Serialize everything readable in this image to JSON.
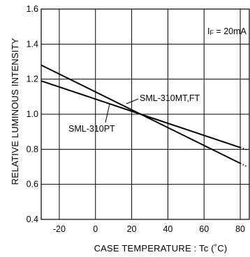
{
  "chart_data": {
    "type": "line",
    "title": "",
    "xlabel": "CASE TEMPERATURE : Tc (˚C)",
    "ylabel": "RELATIVE LUMINOUS INTENSITY",
    "xlim": [
      -30,
      85
    ],
    "ylim": [
      0.4,
      1.6
    ],
    "xticks": [
      -20,
      0,
      20,
      40,
      60,
      80
    ],
    "yticks": [
      0.4,
      0.6,
      0.8,
      1.0,
      1.2,
      1.4,
      1.6
    ],
    "ytick_labels": [
      "0.4",
      "0.6",
      "0.8",
      "1.0",
      "1.2",
      "1.4",
      "1.6"
    ],
    "grid": true,
    "condition_label": "I",
    "condition_subscript": "F",
    "condition_value": " = 20mA",
    "series": [
      {
        "name": "SML-310MT,FT",
        "x": [
          -30,
          25,
          80
        ],
        "y": [
          1.28,
          1.0,
          0.72
        ],
        "dotted_end_x": [
          80,
          84
        ]
      },
      {
        "name": "SML-310PT",
        "x": [
          -30,
          25,
          80
        ],
        "y": [
          1.19,
          1.0,
          0.81
        ],
        "dotted_end_x": [
          80,
          84
        ]
      }
    ]
  }
}
